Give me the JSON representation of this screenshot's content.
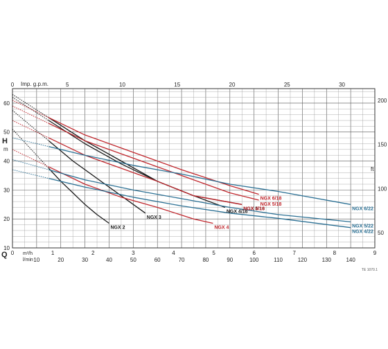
{
  "chart_data": {
    "type": "line",
    "title": "",
    "top_axis": {
      "label": "Imp. g.p.m.",
      "ticks": [
        0,
        5,
        10,
        15,
        20,
        25,
        30
      ],
      "tick_labels": [
        "0",
        "5",
        "10",
        "15",
        "20",
        "25",
        "30"
      ]
    },
    "bottom_axis": {
      "q_symbol": "Q",
      "unit_m3h": "m³/h",
      "unit_lmin": "l/min",
      "m3h_ticks": [
        0,
        1,
        2,
        3,
        4,
        5,
        6,
        7,
        8,
        9
      ],
      "m3h_labels": [
        "0",
        "1",
        "2",
        "3",
        "4",
        "5",
        "6",
        "7",
        "8",
        "9"
      ],
      "lmin_ticks": [
        10,
        20,
        30,
        40,
        50,
        60,
        70,
        80,
        90,
        100,
        110,
        120,
        130,
        140
      ],
      "lmin_labels": [
        "10",
        "20",
        "30",
        "40",
        "50",
        "60",
        "70",
        "80",
        "90",
        "100",
        "110",
        "120",
        "130",
        "140"
      ],
      "xlim": [
        0,
        150
      ]
    },
    "left_axis": {
      "symbol": "H",
      "unit": "m",
      "ticks": [
        10,
        20,
        30,
        40,
        50,
        60
      ],
      "tick_labels": [
        "10",
        "20",
        "30",
        "40",
        "50",
        "60"
      ],
      "ylim": [
        10,
        65
      ]
    },
    "right_axis": {
      "unit": "ft",
      "ticks": [
        50,
        100,
        150,
        200
      ],
      "tick_labels": [
        "50",
        "100",
        "150",
        "200"
      ]
    },
    "grid": true,
    "footnote": "TE 1070.1",
    "series": [
      {
        "name": "NGX 2",
        "color": "#1a1a1a",
        "x": [
          15,
          20,
          25,
          30,
          35,
          40
        ],
        "y": [
          37.5,
          33,
          29,
          25,
          21.5,
          18.5
        ]
      },
      {
        "name": "NGX 3",
        "color": "#1a1a1a",
        "x": [
          15,
          25,
          35,
          45,
          55
        ],
        "y": [
          47,
          40,
          34,
          28,
          22
        ]
      },
      {
        "name": "NGX 4/16",
        "color": "#1a1a1a",
        "x": [
          15,
          30,
          45,
          60,
          75,
          88
        ],
        "y": [
          55,
          47,
          40,
          33,
          28,
          24
        ]
      },
      {
        "name": "NGX 5/16",
        "color": "#1a1a1a",
        "x": [
          15,
          30,
          45,
          60,
          75,
          95
        ],
        "y": [
          54,
          46,
          39,
          33,
          28,
          25
        ]
      },
      {
        "name": "NGX 4",
        "color": "#c0262c",
        "x": [
          15,
          30,
          45,
          60,
          75,
          83
        ],
        "y": [
          38,
          32,
          27.5,
          24,
          20,
          18.5
        ]
      },
      {
        "name": "NGX 4/18",
        "color": "#c0262c",
        "x": [
          15,
          30,
          45,
          60,
          75,
          95
        ],
        "y": [
          48,
          42,
          37.5,
          33,
          28,
          25
        ]
      },
      {
        "name": "NGX 5/18",
        "color": "#c0262c",
        "x": [
          15,
          30,
          50,
          70,
          90,
          102
        ],
        "y": [
          53,
          47,
          41,
          35,
          29,
          26.5
        ]
      },
      {
        "name": "NGX 6/18",
        "color": "#c0262c",
        "x": [
          15,
          30,
          50,
          70,
          90,
          102
        ],
        "y": [
          55,
          49,
          43,
          37,
          31.5,
          28.5
        ]
      },
      {
        "name": "NGX 4/22",
        "color": "#2a6f93",
        "x": [
          15,
          30,
          50,
          70,
          90,
          110,
          140
        ],
        "y": [
          34,
          31,
          27.5,
          24.5,
          22,
          20.2,
          17
        ]
      },
      {
        "name": "NGX 5/22",
        "color": "#2a6f93",
        "x": [
          15,
          30,
          50,
          70,
          90,
          110,
          140
        ],
        "y": [
          37,
          33.5,
          30,
          27,
          24,
          21.5,
          19
        ]
      },
      {
        "name": "NGX 6/22",
        "color": "#2a6f93",
        "x": [
          15,
          30,
          50,
          70,
          90,
          110,
          140
        ],
        "y": [
          45,
          42,
          38.5,
          35.5,
          32,
          29.5,
          25
        ]
      }
    ]
  }
}
